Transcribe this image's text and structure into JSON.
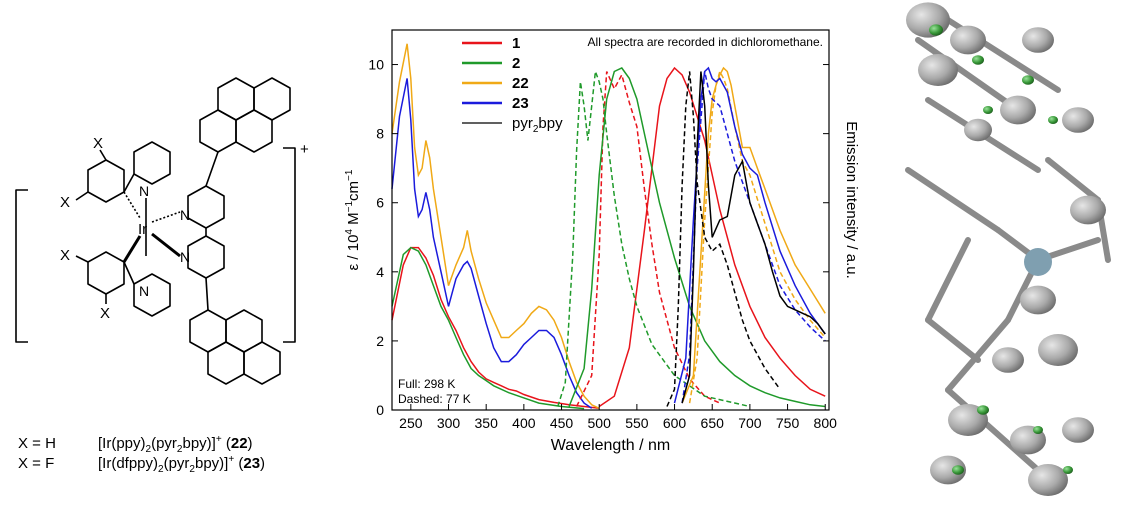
{
  "structure": {
    "substituent": "X",
    "metal": "Ir",
    "nitrogen": "N",
    "charge": "+",
    "variants": [
      {
        "x": "X = H",
        "formula_a": "[Ir(ppy)",
        "sub2a": "2",
        "formula_b": "(pyr",
        "sub2b": "2",
        "formula_c": "bpy)]",
        "sup": "+",
        "id": "22"
      },
      {
        "x": "X = F",
        "formula_a": "[Ir(dfppy)",
        "sub2a": "2",
        "formula_b": "(pyr",
        "sub2b": "2",
        "formula_c": "bpy)]",
        "sup": "+",
        "id": "23"
      }
    ]
  },
  "chart_data": {
    "type": "line",
    "annotation": "All spectra are recorded in dichloromethane.",
    "conditions": [
      "Full: 298 K",
      "Dashed: 77 K"
    ],
    "xlabel": "Wavelength  /  nm",
    "ylabel_left": "ε  /  10",
    "ylabel_left_sup1": "4",
    "ylabel_left_mid": " M",
    "ylabel_left_sup2": "−1",
    "ylabel_left_end": "cm",
    "ylabel_left_sup3": "−1",
    "ylabel_right": "Emission intensity  /  a.u.",
    "xlim": [
      225,
      805
    ],
    "ylim": [
      0,
      11
    ],
    "xticks": [
      250,
      300,
      350,
      400,
      450,
      500,
      550,
      600,
      650,
      700,
      750,
      800
    ],
    "yticks": [
      0,
      2,
      4,
      6,
      8,
      10
    ],
    "colors": {
      "s1": "#e8141b",
      "s2": "#1f9a2a",
      "s22": "#f0a916",
      "s23": "#1b1bdc",
      "pyr": "#000000"
    },
    "legend": [
      {
        "name": "1",
        "bold": true,
        "color": "#e8141b"
      },
      {
        "name": "2",
        "bold": true,
        "color": "#1f9a2a"
      },
      {
        "name": "22",
        "bold": true,
        "color": "#f0a916"
      },
      {
        "name": "23",
        "bold": true,
        "color": "#1b1bdc"
      },
      {
        "name": "pyr",
        "sub": "2",
        "tail": "bpy",
        "bold": false,
        "color": "#000000"
      }
    ],
    "series": [
      {
        "name": "1",
        "kind": "absorption",
        "dash": false,
        "color": "#e8141b",
        "x": [
          225,
          240,
          250,
          260,
          270,
          280,
          290,
          300,
          310,
          320,
          330,
          340,
          350,
          360,
          370,
          380,
          390,
          400,
          420,
          440,
          460,
          480,
          500
        ],
        "y": [
          2.6,
          4.2,
          4.7,
          4.7,
          4.4,
          3.9,
          3.2,
          2.7,
          2.3,
          1.8,
          1.4,
          1.1,
          0.9,
          0.8,
          0.7,
          0.6,
          0.55,
          0.45,
          0.3,
          0.22,
          0.15,
          0.1,
          0.05
        ]
      },
      {
        "name": "2",
        "kind": "absorption",
        "dash": false,
        "color": "#1f9a2a",
        "x": [
          225,
          240,
          250,
          260,
          270,
          280,
          290,
          300,
          310,
          320,
          330,
          340,
          350,
          360,
          380,
          400,
          420,
          450,
          480
        ],
        "y": [
          3.0,
          4.5,
          4.7,
          4.6,
          4.2,
          3.6,
          3.0,
          2.6,
          2.1,
          1.6,
          1.2,
          1.0,
          0.85,
          0.7,
          0.5,
          0.35,
          0.2,
          0.1,
          0.04
        ]
      },
      {
        "name": "22",
        "kind": "absorption",
        "dash": false,
        "color": "#f0a916",
        "x": [
          225,
          235,
          245,
          250,
          255,
          260,
          265,
          270,
          275,
          280,
          290,
          300,
          310,
          320,
          325,
          330,
          340,
          350,
          360,
          370,
          380,
          390,
          400,
          410,
          420,
          430,
          440,
          450,
          460,
          470,
          480,
          490,
          500
        ],
        "y": [
          8.0,
          9.5,
          10.6,
          9.6,
          7.6,
          6.8,
          7.0,
          7.8,
          7.3,
          6.4,
          5.0,
          3.6,
          4.2,
          4.7,
          5.2,
          4.6,
          3.8,
          3.1,
          2.6,
          2.1,
          2.1,
          2.3,
          2.5,
          2.8,
          3.0,
          2.9,
          2.6,
          2.1,
          1.4,
          0.8,
          0.4,
          0.15,
          0.05
        ]
      },
      {
        "name": "23",
        "kind": "absorption",
        "dash": false,
        "color": "#1b1bdc",
        "x": [
          225,
          235,
          245,
          250,
          255,
          260,
          265,
          270,
          275,
          280,
          290,
          300,
          310,
          320,
          325,
          330,
          340,
          350,
          360,
          370,
          380,
          390,
          400,
          410,
          420,
          430,
          440,
          450,
          460,
          470,
          480,
          490
        ],
        "y": [
          6.4,
          8.5,
          9.6,
          8.4,
          6.4,
          5.6,
          5.8,
          6.3,
          5.8,
          5.0,
          4.0,
          3.0,
          3.8,
          4.2,
          4.3,
          4.1,
          3.3,
          2.5,
          1.8,
          1.4,
          1.4,
          1.6,
          1.9,
          2.1,
          2.3,
          2.3,
          2.1,
          1.6,
          1.0,
          0.5,
          0.2,
          0.05
        ]
      },
      {
        "name": "1",
        "kind": "emission",
        "dash": false,
        "color": "#e8141b",
        "x": [
          500,
          520,
          540,
          560,
          580,
          590,
          600,
          610,
          620,
          640,
          660,
          680,
          700,
          720,
          740,
          760,
          780,
          800
        ],
        "y": [
          0.1,
          0.4,
          1.8,
          5.2,
          8.8,
          9.6,
          9.9,
          9.7,
          9.2,
          7.8,
          5.8,
          4.2,
          3.0,
          2.1,
          1.5,
          1.0,
          0.6,
          0.4
        ]
      },
      {
        "name": "1",
        "kind": "emission",
        "dash": true,
        "color": "#e8141b",
        "x": [
          470,
          490,
          500,
          505,
          510,
          520,
          530,
          540,
          550,
          560,
          570,
          580,
          600,
          620,
          640,
          660
        ],
        "y": [
          0.1,
          1.0,
          4.5,
          8.2,
          9.8,
          9.3,
          9.7,
          8.9,
          8.2,
          6.4,
          4.8,
          3.4,
          1.8,
          0.9,
          0.4,
          0.2
        ]
      },
      {
        "name": "2",
        "kind": "emission",
        "dash": false,
        "color": "#1f9a2a",
        "x": [
          460,
          480,
          490,
          500,
          510,
          520,
          530,
          540,
          550,
          560,
          580,
          600,
          620,
          640,
          660,
          680,
          700,
          720,
          740,
          760,
          780,
          800
        ],
        "y": [
          0.1,
          1.2,
          3.5,
          6.8,
          9.0,
          9.8,
          9.9,
          9.6,
          9.0,
          8.0,
          6.0,
          4.4,
          3.0,
          2.0,
          1.4,
          1.0,
          0.7,
          0.5,
          0.35,
          0.25,
          0.15,
          0.1
        ]
      },
      {
        "name": "2",
        "kind": "emission",
        "dash": true,
        "color": "#1f9a2a",
        "x": [
          445,
          455,
          465,
          470,
          475,
          480,
          485,
          490,
          495,
          500,
          505,
          510,
          520,
          530,
          540,
          550,
          570,
          600,
          640,
          700
        ],
        "y": [
          0.1,
          0.8,
          4.5,
          7.5,
          9.5,
          8.8,
          7.8,
          8.8,
          9.8,
          9.5,
          9.0,
          8.0,
          6.2,
          4.8,
          3.8,
          3.0,
          1.9,
          1.0,
          0.4,
          0.1
        ]
      },
      {
        "name": "22",
        "kind": "emission",
        "dash": false,
        "color": "#f0a916",
        "x": [
          610,
          625,
          635,
          645,
          650,
          655,
          660,
          665,
          670,
          675,
          680,
          690,
          700,
          710,
          720,
          740,
          760,
          780,
          800
        ],
        "y": [
          0.2,
          1.0,
          4.5,
          8.0,
          9.0,
          9.4,
          9.7,
          9.9,
          9.8,
          9.4,
          8.8,
          7.6,
          7.6,
          7.0,
          6.4,
          5.2,
          4.2,
          3.5,
          2.8
        ]
      },
      {
        "name": "22",
        "kind": "emission",
        "dash": true,
        "color": "#f0a916",
        "x": [
          620,
          630,
          640,
          650,
          655,
          660,
          665,
          670,
          680,
          690,
          700,
          720,
          740,
          760,
          780,
          800
        ],
        "y": [
          0.2,
          1.5,
          5.5,
          8.6,
          9.4,
          9.8,
          9.6,
          9.3,
          8.2,
          7.2,
          6.8,
          5.4,
          4.0,
          3.2,
          2.6,
          2.1
        ]
      },
      {
        "name": "23",
        "kind": "emission",
        "dash": false,
        "color": "#1b1bdc",
        "x": [
          600,
          615,
          625,
          635,
          640,
          645,
          650,
          655,
          660,
          670,
          680,
          690,
          700,
          710,
          720,
          740,
          760,
          780,
          800
        ],
        "y": [
          0.2,
          1.5,
          5.5,
          9.0,
          9.8,
          9.9,
          9.6,
          9.5,
          9.6,
          9.2,
          8.2,
          7.4,
          7.0,
          6.8,
          6.0,
          4.6,
          3.6,
          2.8,
          2.2
        ]
      },
      {
        "name": "23",
        "kind": "emission",
        "dash": true,
        "color": "#1b1bdc",
        "x": [
          610,
          620,
          630,
          640,
          645,
          650,
          660,
          670,
          680,
          690,
          700,
          720,
          740,
          760,
          780,
          800
        ],
        "y": [
          0.2,
          1.6,
          7.0,
          9.8,
          9.3,
          9.0,
          8.8,
          8.0,
          7.2,
          6.6,
          6.0,
          4.8,
          3.6,
          2.9,
          2.4,
          2.0
        ]
      },
      {
        "name": "pyr2bpy",
        "kind": "emission",
        "dash": false,
        "color": "#000000",
        "x": [
          610,
          620,
          625,
          630,
          635,
          640,
          645,
          650,
          660,
          670,
          680,
          690,
          700,
          710,
          720,
          730,
          740,
          750,
          760,
          770,
          780,
          790,
          800
        ],
        "y": [
          0.2,
          1.0,
          4.0,
          7.6,
          9.8,
          8.8,
          6.5,
          5.0,
          5.5,
          5.6,
          6.8,
          7.2,
          6.0,
          5.4,
          4.8,
          4.0,
          3.3,
          3.0,
          2.9,
          2.8,
          2.7,
          2.5,
          2.2
        ]
      },
      {
        "name": "pyr2bpy",
        "kind": "emission",
        "dash": true,
        "color": "#000000",
        "x": [
          590,
          600,
          605,
          610,
          615,
          620,
          625,
          630,
          640,
          650,
          660,
          670,
          680,
          690,
          700,
          720,
          740
        ],
        "y": [
          0.1,
          0.6,
          3.0,
          6.5,
          8.8,
          9.8,
          8.5,
          6.6,
          5.0,
          4.6,
          4.8,
          4.2,
          3.4,
          2.6,
          2.0,
          1.2,
          0.6
        ]
      }
    ]
  }
}
